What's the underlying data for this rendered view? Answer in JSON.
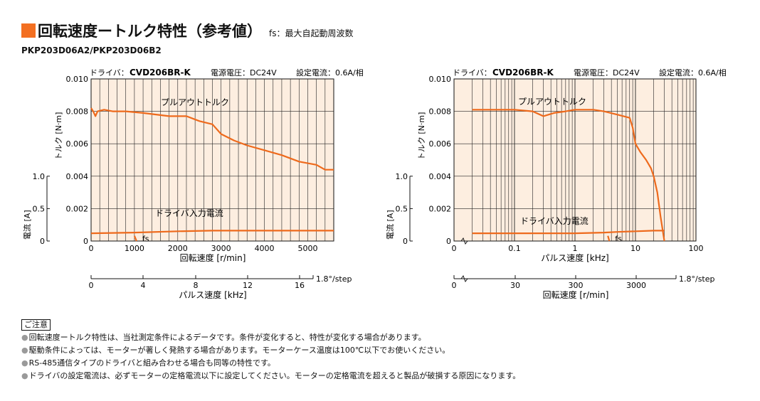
{
  "header": {
    "title": "回転速度ートルク特性（参考値）",
    "fs_note": "fs：最大自起動周波数",
    "model": "PKP203D06A2/PKP203D06B2"
  },
  "colors": {
    "accent": "#f36f21",
    "plot_bg": "#fdeee0",
    "curve": "#ee6a1c"
  },
  "chart_data": [
    {
      "type": "line",
      "header": {
        "driver_label": "ドライバ：",
        "driver_model": "CVD206BR-K",
        "voltage": "電源電圧：DC24V",
        "current": "設定電流：0.6A/相"
      },
      "x_scale": "linear",
      "xlabel": "回転速度 [r/min]",
      "xlim": [
        0,
        5600
      ],
      "x_ticks": [
        "0",
        "1000",
        "2000",
        "3000",
        "4000",
        "5000"
      ],
      "ylabel": "トルク [N·m]",
      "ylim": [
        0,
        0.01
      ],
      "y_ticks": [
        "0",
        "0.002",
        "0.004",
        "0.006",
        "0.008",
        "0.010"
      ],
      "ylabel_current": "電流 [A]",
      "current_ticks": [
        "0",
        "0.5",
        "1.0"
      ],
      "secondary_axis": {
        "label": "パルス速度 [kHz]",
        "ticks": [
          "0",
          "4",
          "8",
          "12",
          "16"
        ],
        "step_label": "1.8°/step"
      },
      "series": [
        {
          "name": "プルアウトトルク",
          "x": [
            0,
            50,
            100,
            150,
            300,
            500,
            800,
            1200,
            1800,
            2200,
            2500,
            2800,
            3000,
            3300,
            3600,
            4000,
            4400,
            4800,
            5200,
            5400,
            5600
          ],
          "y": [
            0.0082,
            0.008,
            0.0077,
            0.008,
            0.0081,
            0.008,
            0.008,
            0.0079,
            0.0077,
            0.0077,
            0.0074,
            0.0072,
            0.0066,
            0.0062,
            0.0059,
            0.0056,
            0.0053,
            0.0049,
            0.0047,
            0.0044,
            0.0044
          ]
        },
        {
          "name": "ドライバ入力電流",
          "x": [
            0,
            1000,
            2000,
            2800,
            3200,
            4000,
            5000,
            5600
          ],
          "y_current": [
            0.12,
            0.13,
            0.15,
            0.16,
            0.16,
            0.16,
            0.16,
            0.16
          ]
        }
      ],
      "annotations": {
        "pullout_label": "プルアウトトルク",
        "current_label": "ドライバ入力電流",
        "fs_label": "fs"
      },
      "fs_marker": {
        "x": [
          1000,
          1050
        ],
        "y_current": [
          0.08,
          0.0
        ]
      }
    },
    {
      "type": "line",
      "header": {
        "driver_label": "ドライバ：",
        "driver_model": "CVD206BR-K",
        "voltage": "電源電圧：DC24V",
        "current": "設定電流：0.6A/相"
      },
      "x_scale": "log",
      "xlabel": "パルス速度 [kHz]",
      "xlim": [
        0.01,
        100
      ],
      "x_ticks": [
        "0",
        "0.1",
        "1",
        "10",
        "100"
      ],
      "ylabel": "トルク [N·m]",
      "ylim": [
        0,
        0.01
      ],
      "y_ticks": [
        "0",
        "0.002",
        "0.004",
        "0.006",
        "0.008",
        "0.010"
      ],
      "ylabel_current": "電流 [A]",
      "current_ticks": [
        "0",
        "0.5",
        "1.0"
      ],
      "secondary_axis": {
        "label": "回転速度 [r/min]",
        "ticks": [
          "0",
          "30",
          "300",
          "3000"
        ],
        "step_label": "1.8°/step"
      },
      "series": [
        {
          "name": "プルアウトトルク",
          "x": [
            0.02,
            0.035,
            0.05,
            0.1,
            0.2,
            0.3,
            0.45,
            0.7,
            1,
            1.5,
            2,
            3,
            5,
            8,
            9,
            10,
            12,
            15,
            18,
            20,
            23,
            26,
            30
          ],
          "y": [
            0.0081,
            0.0081,
            0.0081,
            0.0081,
            0.008,
            0.0077,
            0.0079,
            0.008,
            0.0081,
            0.0081,
            0.0081,
            0.008,
            0.0078,
            0.0076,
            0.007,
            0.006,
            0.0055,
            0.005,
            0.0045,
            0.004,
            0.003,
            0.0015,
            0.0
          ]
        },
        {
          "name": "ドライバ入力電流",
          "x": [
            0.02,
            0.1,
            0.5,
            1,
            3,
            5,
            10,
            20,
            30
          ],
          "y_current": [
            0.12,
            0.12,
            0.12,
            0.12,
            0.13,
            0.14,
            0.15,
            0.16,
            0.16
          ]
        }
      ],
      "annotations": {
        "pullout_label": "プルアウトトルク",
        "current_label": "ドライバ入力電流",
        "fs_label": "fs"
      },
      "fs_marker": {
        "x": [
          3.5,
          3.7
        ],
        "y_current": [
          0.08,
          0.0
        ]
      }
    }
  ],
  "notes": {
    "title": "ご注意",
    "lines": [
      "回転速度ートルク特性は、当社測定条件によるデータです。条件が変化すると、特性が変化する場合があります。",
      "駆動条件によっては、モーターが著しく発熱する場合があります。モーターケース温度は100℃以下でお使いください。",
      "RS-485通信タイプのドライバと組み合わせる場合も同等の特性です。",
      "ドライバの設定電流は、必ずモーターの定格電流以下に設定してください。モーターの定格電流を超えると製品が破損する原因になります。"
    ]
  }
}
